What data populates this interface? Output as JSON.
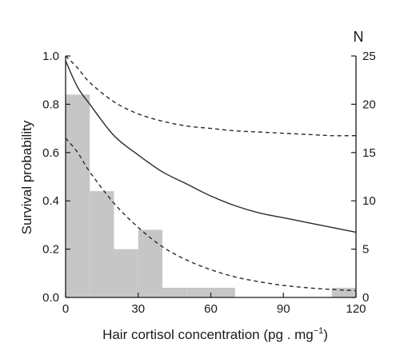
{
  "chart_data": {
    "type": "bar+line",
    "title": "",
    "xlabel": "Hair cortisol concentration (pg . mg",
    "xlabel_superscript": "−1",
    "xlabel_suffix": ")",
    "ylabel": "Survival probability",
    "y2label": "N",
    "xlim": [
      0,
      120
    ],
    "ylim": [
      0,
      1.0
    ],
    "y2lim": [
      0,
      25
    ],
    "xticks": [
      0,
      30,
      60,
      90,
      120
    ],
    "xtick_labels": [
      "0",
      "30",
      "60",
      "90",
      "120"
    ],
    "yticks": [
      0.0,
      0.2,
      0.4,
      0.6,
      0.8,
      1.0
    ],
    "ytick_labels": [
      "0.0",
      "0.2",
      "0.4",
      "0.6",
      "0.8",
      "1.0"
    ],
    "y2ticks": [
      0,
      5,
      10,
      15,
      20,
      25
    ],
    "y2tick_labels": [
      "0",
      "5",
      "10",
      "15",
      "20",
      "25"
    ],
    "grid": false,
    "histogram": {
      "axis": "y2",
      "bins": [
        {
          "x0": 0,
          "x1": 10,
          "n": 21
        },
        {
          "x0": 10,
          "x1": 20,
          "n": 11
        },
        {
          "x0": 20,
          "x1": 30,
          "n": 5
        },
        {
          "x0": 30,
          "x1": 40,
          "n": 7
        },
        {
          "x0": 40,
          "x1": 50,
          "n": 1
        },
        {
          "x0": 50,
          "x1": 60,
          "n": 1
        },
        {
          "x0": 60,
          "x1": 70,
          "n": 1
        },
        {
          "x0": 110,
          "x1": 120,
          "n": 1
        }
      ]
    },
    "series": [
      {
        "style": "solid",
        "x": [
          0,
          5,
          10,
          20,
          30,
          40,
          50,
          60,
          70,
          80,
          90,
          100,
          110,
          120
        ],
        "y": [
          0.98,
          0.87,
          0.8,
          0.67,
          0.59,
          0.52,
          0.47,
          0.42,
          0.38,
          0.35,
          0.33,
          0.31,
          0.29,
          0.27
        ]
      },
      {
        "style": "dashed",
        "x": [
          0,
          5,
          10,
          20,
          30,
          40,
          50,
          60,
          70,
          80,
          90,
          100,
          110,
          120
        ],
        "y": [
          1.0,
          0.95,
          0.89,
          0.81,
          0.76,
          0.73,
          0.71,
          0.7,
          0.69,
          0.685,
          0.68,
          0.675,
          0.67,
          0.67
        ]
      },
      {
        "style": "dashed",
        "x": [
          0,
          5,
          10,
          20,
          30,
          40,
          50,
          60,
          70,
          80,
          90,
          100,
          110,
          120
        ],
        "y": [
          0.66,
          0.6,
          0.52,
          0.39,
          0.29,
          0.21,
          0.155,
          0.115,
          0.085,
          0.065,
          0.05,
          0.04,
          0.033,
          0.028
        ]
      }
    ]
  }
}
